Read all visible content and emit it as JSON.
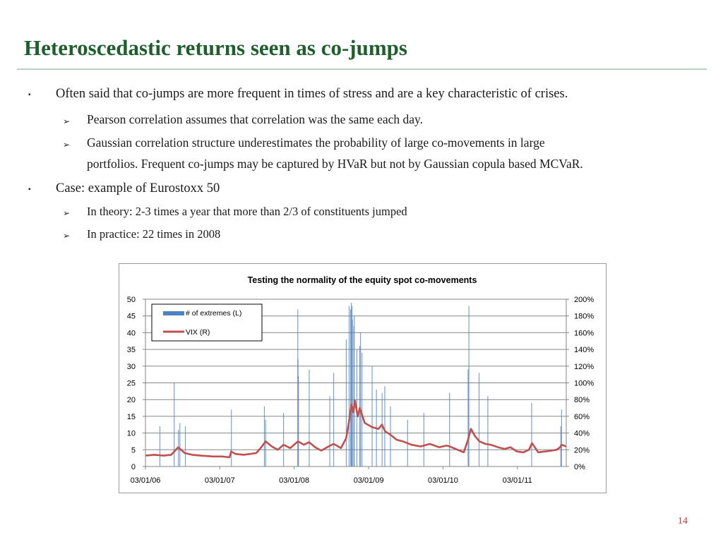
{
  "slide": {
    "title": "Heteroscedastic returns seen as co-jumps",
    "page_number": "14",
    "accent_color": "#1f5e2d",
    "bullets": [
      {
        "text": "Often said that co-jumps are more frequent in times of stress and are a key characteristic of crises.",
        "sub": [
          "Pearson correlation assumes that correlation was the same each day.",
          "Gaussian correlation structure underestimates the probability of large co-movements in large",
          "portfolios. Frequent co-jumps may be captured by HVaR but not by Gaussian copula based MCVaR."
        ]
      },
      {
        "text": "Case: example of Eurostoxx 50",
        "sub": [
          "In theory: 2-3 times a year that more than 2/3 of constituents jumped",
          "In practice: 22 times in 2008"
        ]
      }
    ]
  },
  "chart_data": {
    "type": "bar+line",
    "title": "Testing the normality of the equity spot co-movements",
    "x_tick_labels": [
      "03/01/06",
      "03/01/07",
      "03/01/08",
      "03/01/09",
      "03/01/10",
      "03/01/11"
    ],
    "x_range": [
      "2006-01-03",
      "2011-08-31"
    ],
    "y_left": {
      "ylim": [
        0,
        50
      ],
      "ticks": [
        "0",
        "5",
        "10",
        "15",
        "20",
        "25",
        "30",
        "35",
        "40",
        "45",
        "50"
      ]
    },
    "y_right": {
      "ylim": [
        0,
        2
      ],
      "ticks": [
        "0%",
        "20%",
        "40%",
        "60%",
        "80%",
        "100%",
        "120%",
        "140%",
        "160%",
        "180%",
        "200%"
      ]
    },
    "grid": true,
    "legend_position": "top-left",
    "series": [
      {
        "name": "# of extremes (L)",
        "type": "bar",
        "axis": "left",
        "color": "#4f81bd",
        "x": [
          "2006-03-15",
          "2006-05-24",
          "2006-06-14",
          "2006-06-21",
          "2006-07-18",
          "2007-03-01",
          "2007-08-10",
          "2007-08-16",
          "2007-11-12",
          "2008-01-21",
          "2008-01-22",
          "2008-01-24",
          "2008-03-17",
          "2008-06-26",
          "2008-07-15",
          "2008-09-15",
          "2008-09-29",
          "2008-10-06",
          "2008-10-10",
          "2008-10-13",
          "2008-10-15",
          "2008-10-22",
          "2008-10-24",
          "2008-11-06",
          "2008-11-20",
          "2008-11-24",
          "2008-12-01",
          "2009-01-20",
          "2009-02-10",
          "2009-03-10",
          "2009-03-23",
          "2009-04-20",
          "2009-07-13",
          "2009-10-01",
          "2010-02-04",
          "2010-05-06",
          "2010-05-10",
          "2010-06-29",
          "2010-08-11",
          "2011-03-14",
          "2011-08-04",
          "2011-08-08"
        ],
        "values": [
          12,
          25,
          11,
          13,
          12,
          17,
          18,
          14,
          16,
          47,
          32,
          27,
          29,
          21,
          28,
          38,
          48,
          47,
          49,
          48,
          44,
          42,
          45,
          35,
          36,
          40,
          34,
          30,
          23,
          22,
          24,
          18,
          14,
          16,
          22,
          29,
          48,
          28,
          21,
          19,
          12,
          17
        ]
      },
      {
        "name": "VIX (R)",
        "type": "line",
        "axis": "right",
        "color": "#c0504d",
        "x": [
          "2006-01-03",
          "2006-02-15",
          "2006-04-01",
          "2006-05-10",
          "2006-06-13",
          "2006-07-15",
          "2006-08-20",
          "2006-10-01",
          "2006-12-01",
          "2007-01-15",
          "2007-02-20",
          "2007-02-28",
          "2007-03-20",
          "2007-05-01",
          "2007-07-01",
          "2007-07-26",
          "2007-08-16",
          "2007-09-15",
          "2007-10-15",
          "2007-11-12",
          "2007-12-15",
          "2008-01-22",
          "2008-02-20",
          "2008-03-17",
          "2008-04-15",
          "2008-05-15",
          "2008-06-20",
          "2008-07-15",
          "2008-08-20",
          "2008-09-15",
          "2008-09-29",
          "2008-10-10",
          "2008-10-20",
          "2008-10-27",
          "2008-11-10",
          "2008-11-20",
          "2008-12-15",
          "2009-01-20",
          "2009-02-20",
          "2009-03-09",
          "2009-03-25",
          "2009-04-20",
          "2009-05-20",
          "2009-06-20",
          "2009-08-01",
          "2009-09-15",
          "2009-10-30",
          "2009-12-15",
          "2010-01-20",
          "2010-02-05",
          "2010-03-15",
          "2010-04-15",
          "2010-05-07",
          "2010-05-20",
          "2010-06-10",
          "2010-07-01",
          "2010-07-30",
          "2010-08-25",
          "2010-09-30",
          "2010-11-01",
          "2010-11-30",
          "2010-12-31",
          "2011-02-01",
          "2011-03-01",
          "2011-03-16",
          "2011-04-15",
          "2011-05-20",
          "2011-06-20",
          "2011-07-15",
          "2011-08-01",
          "2011-08-08",
          "2011-08-31"
        ],
        "values": [
          0.13,
          0.14,
          0.13,
          0.14,
          0.23,
          0.16,
          0.14,
          0.13,
          0.12,
          0.12,
          0.11,
          0.18,
          0.15,
          0.14,
          0.16,
          0.23,
          0.3,
          0.24,
          0.2,
          0.26,
          0.22,
          0.3,
          0.26,
          0.29,
          0.23,
          0.19,
          0.24,
          0.27,
          0.22,
          0.34,
          0.55,
          0.74,
          0.65,
          0.79,
          0.6,
          0.7,
          0.52,
          0.47,
          0.45,
          0.5,
          0.42,
          0.38,
          0.32,
          0.3,
          0.26,
          0.24,
          0.27,
          0.23,
          0.25,
          0.24,
          0.2,
          0.17,
          0.33,
          0.45,
          0.36,
          0.3,
          0.27,
          0.26,
          0.23,
          0.21,
          0.23,
          0.18,
          0.17,
          0.2,
          0.28,
          0.17,
          0.18,
          0.19,
          0.2,
          0.23,
          0.26,
          0.24
        ]
      }
    ]
  }
}
